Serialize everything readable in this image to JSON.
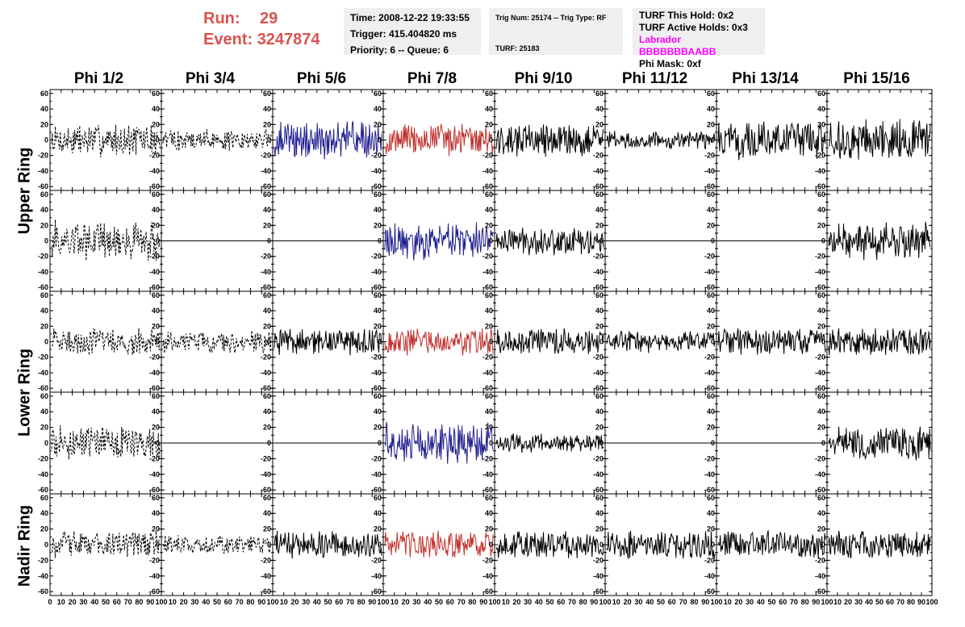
{
  "header": {
    "run_label": "Run:",
    "run_value": "29",
    "event_label": "Event:",
    "event_value": "3247874"
  },
  "info_panel": {
    "time": "Time: 2008-12-22 19:33:55",
    "trigger": "Trigger: 415.404820 ms",
    "priority": "Priority: 6 -- Queue: 6"
  },
  "trig_panel": {
    "trig_line": "Trig Num: 25174 -- Trig Type: RF",
    "turf_line": "TURF: 25183"
  },
  "turf_panel": {
    "this_hold": "TURF This Hold: 0x2",
    "active_holds": "TURF Active Holds: 0x3",
    "labrador": "Labrador BBBBBBBAABB",
    "phi_mask": "Phi Mask: 0xf"
  },
  "colors": {
    "panel_bg": "#efefef",
    "run_text": "#d9534f",
    "labrador_text": "#ff00ff",
    "trace_black": "#000000",
    "trace_blue": "#1f1f8f",
    "trace_red": "#c0302b"
  },
  "chart_data": {
    "type": "line",
    "columns": [
      "Phi 1/2",
      "Phi 3/4",
      "Phi 5/6",
      "Phi 7/8",
      "Phi 9/10",
      "Phi 11/12",
      "Phi 13/14",
      "Phi 15/16"
    ],
    "rows": [
      "Upper Ring",
      "Upper Ring",
      "Lower Ring",
      "Lower Ring",
      "Nadir Ring"
    ],
    "row_titles": [
      "Upper Ring",
      "Lower Ring",
      "Nadir Ring"
    ],
    "ylim": [
      -65,
      65
    ],
    "yticks": [
      -60,
      -40,
      -20,
      0,
      20,
      40,
      60
    ],
    "xlim": [
      0,
      100
    ],
    "xticks": [
      0,
      10,
      20,
      30,
      40,
      50,
      60,
      70,
      80,
      90,
      100
    ],
    "panels": [
      [
        "dashed",
        "dashed",
        "blue",
        "red",
        "black",
        "black",
        "black",
        "black"
      ],
      [
        "dashed",
        "flat",
        "flat",
        "blue",
        "black",
        "flat",
        "flat",
        "black"
      ],
      [
        "dashed",
        "dashed",
        "black",
        "red",
        "black",
        "black",
        "black",
        "black"
      ],
      [
        "dashed",
        "flat",
        "flat",
        "blue",
        "black",
        "flat",
        "flat",
        "black"
      ],
      [
        "dashed",
        "dashed",
        "black",
        "red",
        "black",
        "black",
        "black",
        "black"
      ]
    ],
    "amplitude": [
      [
        18,
        12,
        20,
        18,
        18,
        10,
        20,
        22
      ],
      [
        22,
        0,
        0,
        20,
        15,
        0,
        0,
        20
      ],
      [
        15,
        12,
        15,
        15,
        15,
        12,
        15,
        15
      ],
      [
        18,
        0,
        0,
        22,
        10,
        0,
        0,
        18
      ],
      [
        15,
        10,
        15,
        15,
        15,
        15,
        15,
        15
      ]
    ]
  }
}
